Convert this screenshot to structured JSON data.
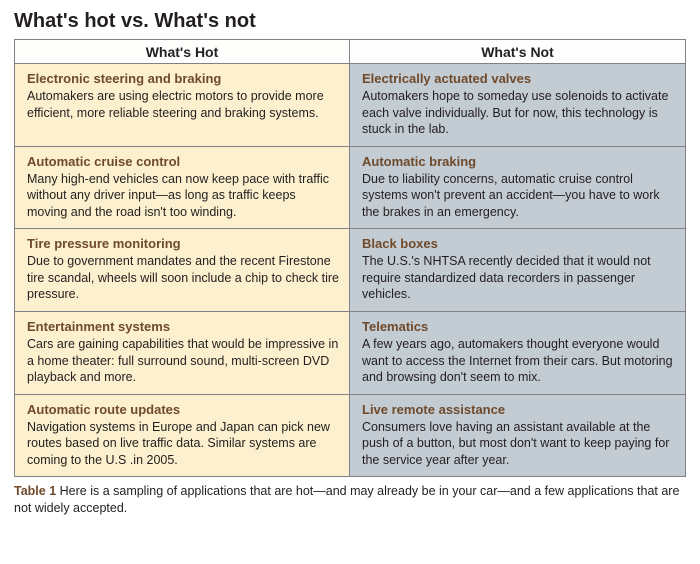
{
  "title": "What's hot vs. What's not",
  "headers": {
    "left": "What's Hot",
    "right": "What's Not"
  },
  "rows": [
    {
      "left": {
        "title": "Electronic steering and braking",
        "body": "Automakers are using electric motors to provide more efficient, more reliable steering and braking systems."
      },
      "right": {
        "title": "Electrically actuated valves",
        "body": "Automakers hope to someday use solenoids to activate each valve individually. But for now, this technology is stuck in the lab."
      }
    },
    {
      "left": {
        "title": "Automatic cruise control",
        "body": "Many high-end vehicles can now keep pace with traffic without any driver input—as long as traffic keeps moving and the road isn't too winding."
      },
      "right": {
        "title": "Automatic braking",
        "body": "Due to liability concerns, automatic cruise control systems won't prevent an accident—you have to work the brakes in an emergency."
      }
    },
    {
      "left": {
        "title": "Tire pressure monitoring",
        "body": "Due to government mandates and the recent Firestone tire scandal, wheels will soon include a chip to check tire pressure."
      },
      "right": {
        "title": "Black boxes",
        "body": "The U.S.'s NHTSA recently decided that it would not require standardized data recorders in passenger vehicles."
      }
    },
    {
      "left": {
        "title": "Entertainment systems",
        "body": "Cars are gaining capabilities that would be impressive in a home theater: full surround sound, multi-screen DVD playback and more."
      },
      "right": {
        "title": "Telematics",
        "body": "A few years ago, automakers thought everyone would want to access the Internet from their cars.  But motoring and browsing don't seem to mix."
      }
    },
    {
      "left": {
        "title": "Automatic route updates",
        "body": "Navigation systems in Europe and Japan can pick new routes based on live traffic data. Similar systems are coming to the U.S .in 2005."
      },
      "right": {
        "title": "Live remote assistance",
        "body": "Consumers love having an assistant available at the push of a button, but most don't want to keep paying for the service year after year."
      }
    }
  ],
  "caption": {
    "label": "Table 1",
    "text": " Here is a sampling of applications that are hot—and may already be in your car—and a few applications that are not widely accepted."
  },
  "colors": {
    "title_text": "#231f20",
    "item_title_text": "#6f4a2b",
    "hot_bg": "#fdf0ce",
    "not_bg": "#c3cbd3",
    "border": "#808285"
  }
}
